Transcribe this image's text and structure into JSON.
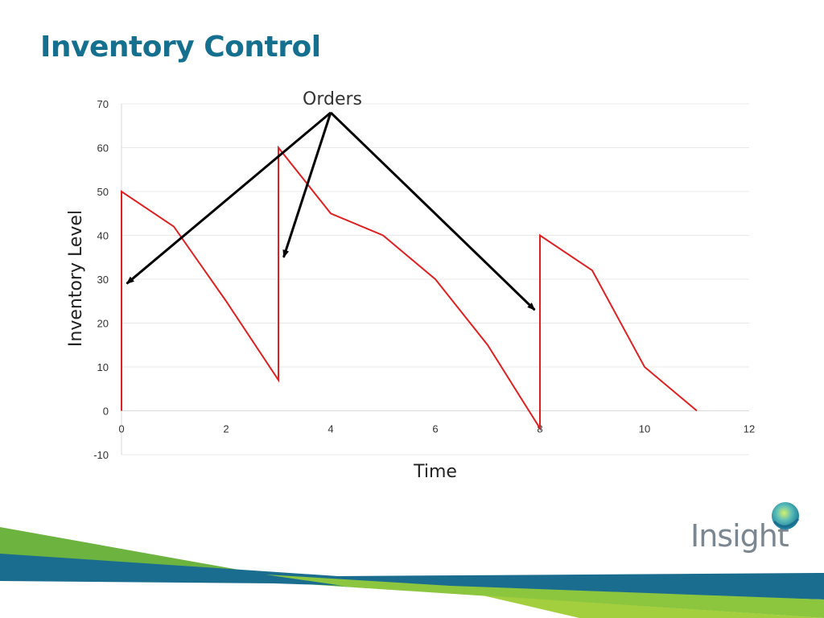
{
  "slide": {
    "title": "Inventory Control"
  },
  "logo": {
    "text": "Insight"
  },
  "colors": {
    "title": "#15708f",
    "series": "#e02020",
    "arrow": "#000000",
    "grid": "#e8e8e8",
    "logo_text": "#7a8790",
    "band_green": "#6db33f",
    "band_blue": "#1b6d8f"
  },
  "chart_data": {
    "type": "line",
    "title": "",
    "xlabel": "Time",
    "ylabel": "Inventory Level",
    "xlim": [
      0,
      12
    ],
    "ylim": [
      -10,
      70
    ],
    "x_ticks": [
      0,
      2,
      4,
      6,
      8,
      10,
      12
    ],
    "y_ticks": [
      -10,
      0,
      10,
      20,
      30,
      40,
      50,
      60,
      70
    ],
    "grid": true,
    "series": [
      {
        "name": "Inventory",
        "x": [
          0,
          0,
          1,
          2,
          3,
          3,
          4,
          5,
          6,
          7,
          8,
          8,
          9,
          10,
          11
        ],
        "y": [
          0,
          50,
          42,
          25,
          7,
          60,
          45,
          40,
          30,
          15,
          -4,
          40,
          32,
          10,
          0
        ]
      }
    ],
    "annotations": [
      {
        "text": "Orders",
        "arrow_origin": [
          4,
          68
        ],
        "arrow_targets": [
          [
            0.1,
            29
          ],
          [
            3.1,
            35
          ],
          [
            7.9,
            23
          ]
        ]
      }
    ]
  }
}
